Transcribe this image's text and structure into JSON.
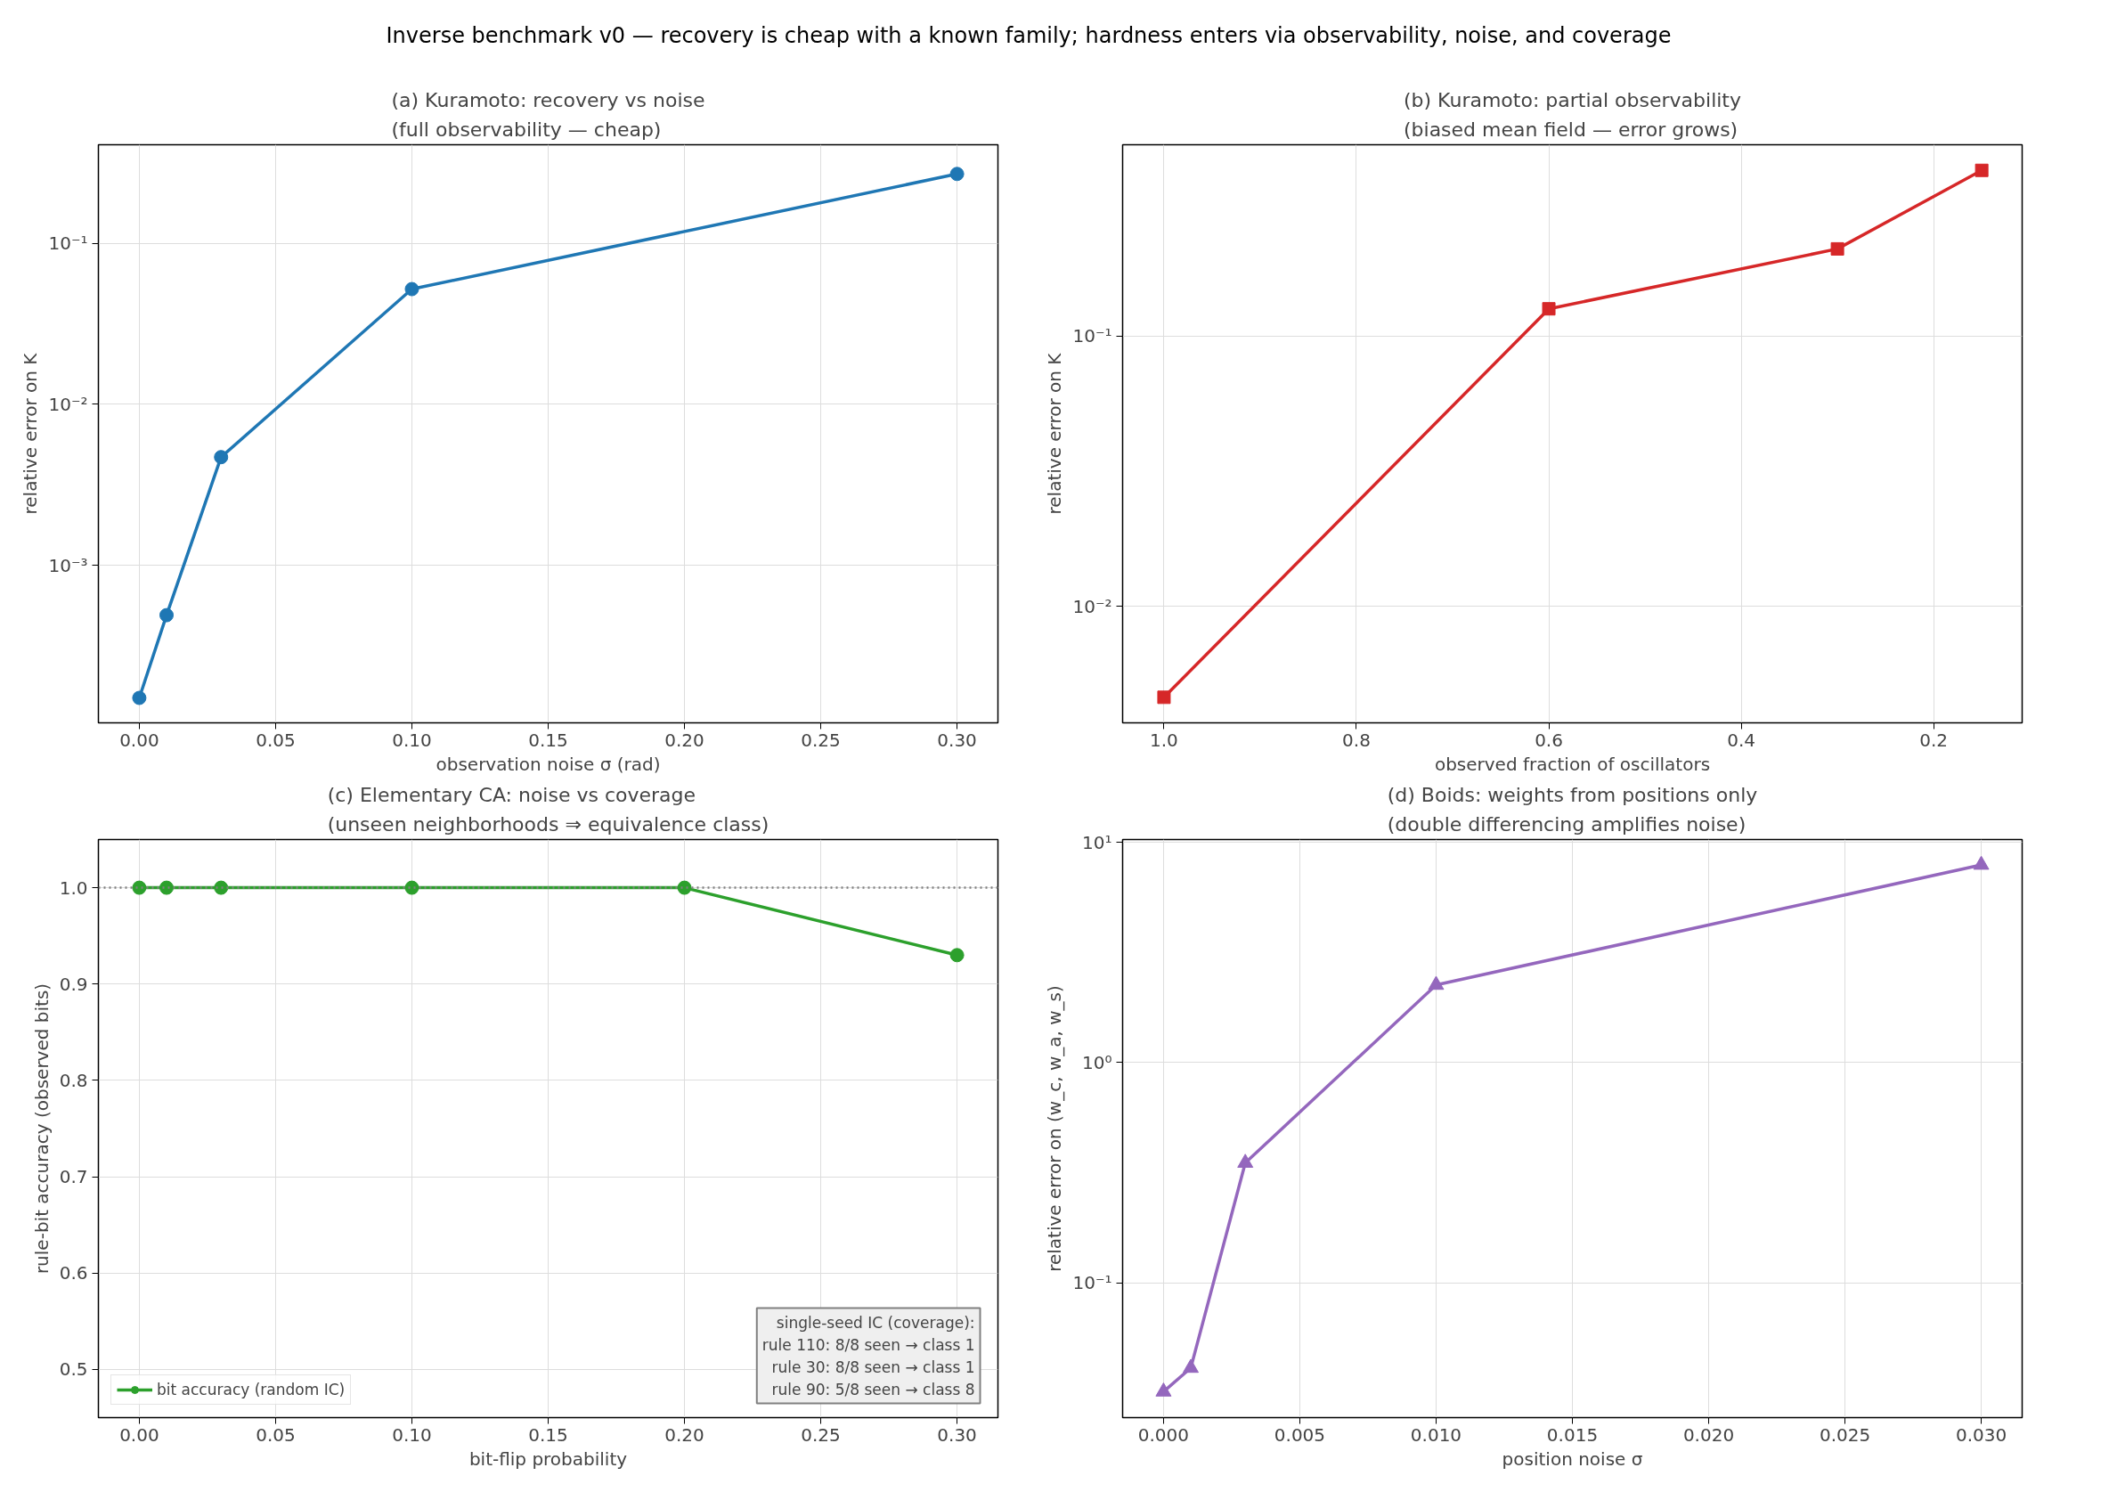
{
  "chart_data": [
    {
      "type": "line",
      "title": "(a) Kuramoto: recovery vs noise\n(full observability — cheap)",
      "xlabel": "observation noise σ (rad)",
      "ylabel": "relative error on K",
      "log": "y",
      "grid": true,
      "marker": "circle",
      "line_style": "solid",
      "x": [
        0.0,
        0.01,
        0.03,
        0.1,
        0.3
      ],
      "series": [
        {
          "color": "#1f77b4",
          "values": [
            0.00015,
            0.00049,
            0.0047,
            0.052,
            0.27
          ]
        }
      ],
      "xlim": [
        -0.015,
        0.315
      ],
      "xticks": [
        {
          "value": 0,
          "label": "0.00"
        },
        {
          "value": 0.05,
          "label": "0.05"
        },
        {
          "value": 0.1,
          "label": "0.10"
        },
        {
          "value": 0.15,
          "label": "0.15"
        },
        {
          "value": 0.2,
          "label": "0.20"
        },
        {
          "value": 0.25,
          "label": "0.25"
        },
        {
          "value": 0.3,
          "label": "0.30"
        }
      ],
      "ylim": [
        0.000105,
        0.41
      ],
      "yticks": [
        {
          "value": 0.001,
          "label": "10⁻³"
        },
        {
          "value": 0.01,
          "label": "10⁻²"
        },
        {
          "value": 0.1,
          "label": "10⁻¹"
        }
      ],
      "annotations": [
        "Inverse benchmark v0 — recovery is cheap with a known family; hardness enters via observability, noise, and coverage"
      ]
    },
    {
      "type": "line",
      "title": "(b) Kuramoto: partial observability\n(biased mean field — error grows)",
      "xlabel": "observed fraction of oscillators",
      "ylabel": "relative error on K",
      "log": "y",
      "grid": true,
      "marker": "square",
      "line_style": "solid",
      "x": [
        1.0,
        0.6,
        0.3,
        0.15
      ],
      "series": [
        {
          "color": "#d62728",
          "values": [
            0.0046,
            0.126,
            0.21,
            0.41
          ]
        }
      ],
      "xlim": [
        1.043,
        0.108
      ],
      "xticks": [
        {
          "value": 1.0,
          "label": "1.0"
        },
        {
          "value": 0.8,
          "label": "0.8"
        },
        {
          "value": 0.6,
          "label": "0.6"
        },
        {
          "value": 0.4,
          "label": "0.4"
        },
        {
          "value": 0.2,
          "label": "0.2"
        }
      ],
      "ylim": [
        0.0037,
        0.51
      ],
      "yticks": [
        {
          "value": 0.01,
          "label": "10⁻²"
        },
        {
          "value": 0.1,
          "label": "10⁻¹"
        }
      ]
    },
    {
      "type": "line",
      "title": "(c) Elementary CA: noise vs coverage\n(unseen neighborhoods ⇒ equivalence class)",
      "xlabel": "bit-flip probability",
      "ylabel": "rule-bit accuracy (observed bits)",
      "grid": true,
      "marker": "circle",
      "line_style": "solid",
      "legend": "bottom left",
      "x": [
        0.0,
        0.01,
        0.03,
        0.1,
        0.2,
        0.3
      ],
      "series": [
        {
          "name": "bit accuracy (random IC)",
          "color": "#2ca02c",
          "values": [
            1.0,
            1.0,
            1.0,
            1.0,
            1.0,
            0.93
          ]
        }
      ],
      "xlim": [
        -0.015,
        0.315
      ],
      "xticks": [
        {
          "value": 0,
          "label": "0.00"
        },
        {
          "value": 0.05,
          "label": "0.05"
        },
        {
          "value": 0.1,
          "label": "0.10"
        },
        {
          "value": 0.15,
          "label": "0.15"
        },
        {
          "value": 0.2,
          "label": "0.20"
        },
        {
          "value": 0.25,
          "label": "0.25"
        },
        {
          "value": 0.3,
          "label": "0.30"
        }
      ],
      "ylim": [
        0.45,
        1.05
      ],
      "yticks": [
        0.5,
        0.6,
        0.7,
        0.8,
        0.9,
        {
          "value": 1.0,
          "label": "1.0"
        }
      ],
      "ref_lines": [
        {
          "axis": "y",
          "value": 1.0,
          "color": "#808080",
          "line_style": "dotted"
        }
      ],
      "annotations": [
        "single-seed IC (coverage):\nrule 110: 8/8 seen → class 1\nrule 30: 8/8 seen → class 1\nrule 90: 5/8 seen → class 8"
      ]
    },
    {
      "type": "line",
      "title": "(d) Boids: weights from positions only\n(double differencing amplifies noise)",
      "xlabel": "position noise σ",
      "ylabel": "relative error on (w_c, w_a, w_s)",
      "log": "y",
      "grid": true,
      "marker": "triangle",
      "line_style": "solid",
      "x": [
        0.0,
        0.001,
        0.003,
        0.01,
        0.03
      ],
      "series": [
        {
          "color": "#9467bd",
          "values": [
            0.032,
            0.041,
            0.35,
            2.25,
            7.9
          ]
        }
      ],
      "xlim": [
        -0.0015,
        0.0315
      ],
      "xticks": [
        {
          "value": 0,
          "label": "0.000"
        },
        {
          "value": 0.005,
          "label": "0.005"
        },
        {
          "value": 0.01,
          "label": "0.010"
        },
        {
          "value": 0.015,
          "label": "0.015"
        },
        {
          "value": 0.02,
          "label": "0.020"
        },
        {
          "value": 0.025,
          "label": "0.025"
        },
        {
          "value": 0.03,
          "label": "0.030"
        }
      ],
      "ylim": [
        0.0244,
        10.3
      ],
      "yticks": [
        {
          "value": 0.1,
          "label": "10⁻¹"
        },
        {
          "value": 1,
          "label": "10⁰"
        },
        {
          "value": 10,
          "label": "10¹"
        }
      ]
    }
  ]
}
